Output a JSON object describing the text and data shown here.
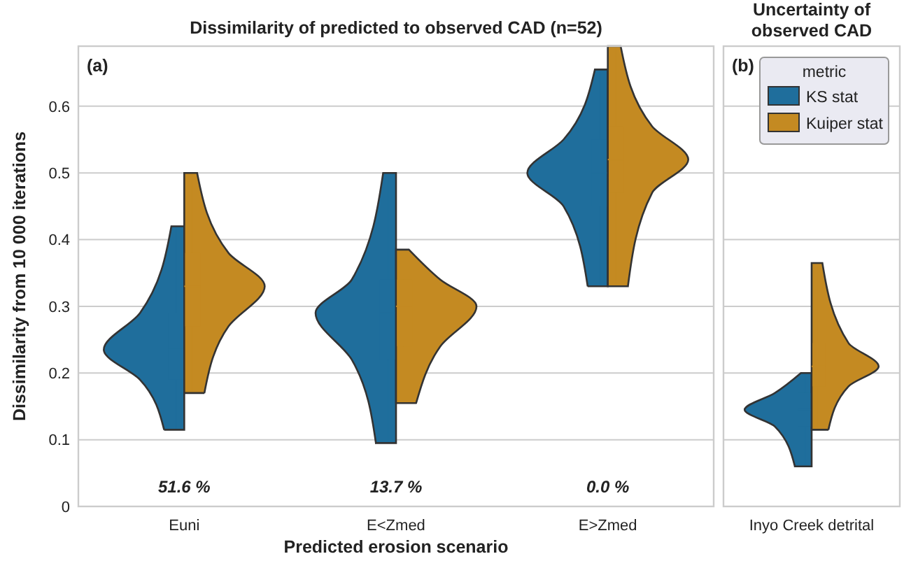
{
  "chart_data": [
    {
      "type": "box",
      "title": "Dissimilarity of predicted to observed CAD (n=52)",
      "xlabel": "Predicted erosion scenario",
      "ylabel": "Dissimilarity from 10 000 iterations",
      "categories": [
        "Euni",
        "E<Zmed",
        "E>Zmed"
      ],
      "ylim": [
        0,
        0.69
      ],
      "yticks": [
        0,
        0.1,
        0.2,
        0.3,
        0.4,
        0.5,
        0.6
      ],
      "grid": "y",
      "series": [
        {
          "color": "#1f6e9c",
          "boxes": [
            {
              "low": 0.115,
              "q1": 0.19,
              "median": 0.235,
              "q3": 0.29,
              "high": 0.42
            },
            {
              "low": 0.095,
              "q1": 0.22,
              "median": 0.29,
              "q3": 0.34,
              "high": 0.5
            },
            {
              "low": 0.33,
              "q1": 0.45,
              "median": 0.5,
              "q3": 0.55,
              "high": 0.655
            }
          ]
        },
        {
          "color": "#c48a22",
          "boxes": [
            {
              "low": 0.17,
              "q1": 0.27,
              "median": 0.33,
              "q3": 0.38,
              "high": 0.5
            },
            {
              "low": 0.155,
              "q1": 0.24,
              "median": 0.3,
              "q3": 0.34,
              "high": 0.385
            },
            {
              "low": 0.33,
              "q1": 0.47,
              "median": 0.52,
              "q3": 0.57,
              "high": 0.69
            }
          ]
        }
      ],
      "annotations": [
        "(a)",
        "51.6 %",
        "13.7 %",
        "0.0 %"
      ]
    },
    {
      "type": "box",
      "title": "Uncertainty of observed CAD",
      "categories": [
        "Inyo Creek detrital"
      ],
      "ylim": [
        0,
        0.69
      ],
      "yticks": [
        0,
        0.1,
        0.2,
        0.3,
        0.4,
        0.5,
        0.6
      ],
      "grid": "y",
      "tick_labels": "x",
      "legend": "top right",
      "legend_title": "metric",
      "series": [
        {
          "name": "KS stat",
          "color": "#1f6e9c",
          "boxes": [
            {
              "low": 0.06,
              "q1": 0.12,
              "median": 0.145,
              "q3": 0.17,
              "high": 0.2
            }
          ]
        },
        {
          "name": "Kuiper stat",
          "color": "#c48a22",
          "boxes": [
            {
              "low": 0.115,
              "q1": 0.18,
              "median": 0.21,
              "q3": 0.245,
              "high": 0.365
            }
          ]
        }
      ],
      "annotations": [
        "(b)"
      ]
    }
  ]
}
